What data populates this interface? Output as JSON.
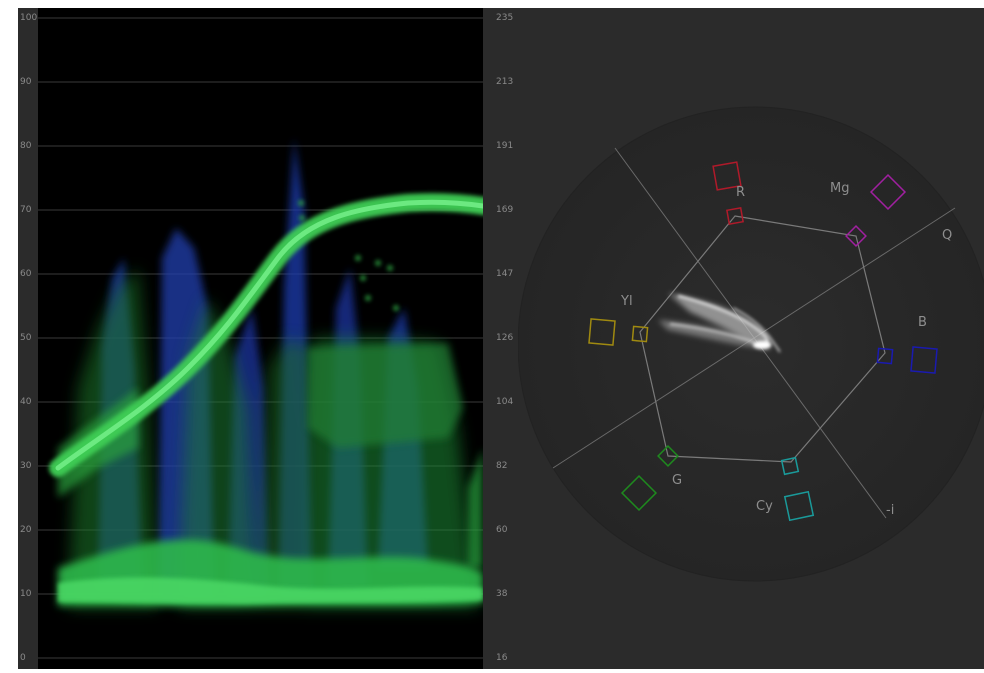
{
  "waveform": {
    "left_scale": [
      "100",
      "90",
      "80",
      "70",
      "60",
      "50",
      "40",
      "30",
      "20",
      "10",
      "0"
    ],
    "right_scale": [
      "235",
      "213",
      "191",
      "169",
      "147",
      "126",
      "104",
      "82",
      "60",
      "38",
      "16"
    ]
  },
  "vectorscope": {
    "labels": {
      "r": "R",
      "mg": "Mg",
      "yl": "Yl",
      "b": "B",
      "g": "G",
      "cy": "Cy",
      "q": "Q",
      "i": "-i"
    },
    "colors": {
      "r": "#b01a2a",
      "mg": "#a020a0",
      "yl": "#a08a10",
      "b": "#1a1ab0",
      "g": "#1e8a1e",
      "cy": "#1a9a9a"
    }
  }
}
